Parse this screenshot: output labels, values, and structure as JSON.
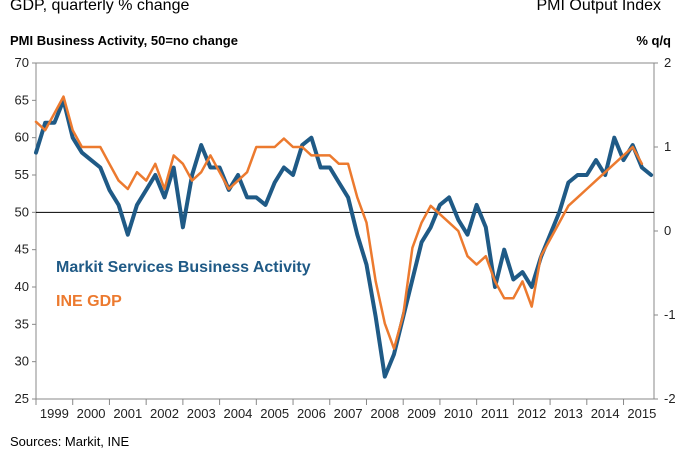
{
  "chart_data": {
    "type": "line",
    "title_left": "GDP, quarterly % change",
    "title_right": "PMI Output Index",
    "ylabel_left": "PMI Business Activity, 50=no change",
    "ylabel_right": "% q/q",
    "source": "Sources: Markit, INE",
    "ylim_left": [
      25,
      70
    ],
    "ylim_right": [
      -2,
      2
    ],
    "reference_line_left": 50,
    "yticks_left": [
      "70",
      "65",
      "60",
      "55",
      "50",
      "45",
      "40",
      "35",
      "30",
      "25"
    ],
    "yticks_right": [
      "2",
      "1",
      "0",
      "-1",
      "-2"
    ],
    "x_range": [
      1999.0,
      2015.83
    ],
    "xticks": [
      "1999",
      "2000",
      "2001",
      "2002",
      "2003",
      "2004",
      "2005",
      "2006",
      "2007",
      "2008",
      "2009",
      "2010",
      "2011",
      "2012",
      "2013",
      "2014",
      "2015"
    ],
    "series": [
      {
        "name": "Markit Services Business Activity",
        "axis": "left",
        "color": "#1f5a86",
        "x": [
          1999.0,
          1999.25,
          1999.5,
          1999.75,
          2000.0,
          2000.25,
          2000.5,
          2000.75,
          2001.0,
          2001.25,
          2001.5,
          2001.75,
          2002.0,
          2002.25,
          2002.5,
          2002.75,
          2003.0,
          2003.25,
          2003.5,
          2003.75,
          2004.0,
          2004.25,
          2004.5,
          2004.75,
          2005.0,
          2005.25,
          2005.5,
          2005.75,
          2006.0,
          2006.25,
          2006.5,
          2006.75,
          2007.0,
          2007.25,
          2007.5,
          2007.75,
          2008.0,
          2008.25,
          2008.5,
          2008.75,
          2009.0,
          2009.25,
          2009.5,
          2009.75,
          2010.0,
          2010.25,
          2010.5,
          2010.75,
          2011.0,
          2011.25,
          2011.5,
          2011.75,
          2012.0,
          2012.25,
          2012.5,
          2012.75,
          2013.0,
          2013.25,
          2013.5,
          2013.75,
          2014.0,
          2014.25,
          2014.5,
          2014.75,
          2015.0,
          2015.25,
          2015.5,
          2015.75
        ],
        "values": [
          58,
          62,
          62,
          65,
          60,
          58,
          57,
          56,
          53,
          51,
          47,
          51,
          53,
          55,
          52,
          56,
          48,
          55,
          59,
          56,
          56,
          53,
          55,
          52,
          52,
          51,
          54,
          56,
          55,
          59,
          60,
          56,
          56,
          54,
          52,
          47,
          43,
          36,
          28,
          31,
          36,
          41,
          46,
          48,
          51,
          52,
          49,
          47,
          51,
          48,
          40,
          45,
          41,
          42,
          40,
          44,
          47,
          50,
          54,
          55,
          55,
          57,
          55,
          60,
          57,
          59,
          56,
          55
        ]
      },
      {
        "name": "INE GDP",
        "axis": "right",
        "color": "#ec7a2f",
        "x": [
          1999.0,
          1999.25,
          1999.5,
          1999.75,
          2000.0,
          2000.25,
          2000.5,
          2000.75,
          2001.0,
          2001.25,
          2001.5,
          2001.75,
          2002.0,
          2002.25,
          2002.5,
          2002.75,
          2003.0,
          2003.25,
          2003.5,
          2003.75,
          2004.0,
          2004.25,
          2004.5,
          2004.75,
          2005.0,
          2005.25,
          2005.5,
          2005.75,
          2006.0,
          2006.25,
          2006.5,
          2006.75,
          2007.0,
          2007.25,
          2007.5,
          2007.75,
          2008.0,
          2008.25,
          2008.5,
          2008.75,
          2009.0,
          2009.25,
          2009.5,
          2009.75,
          2010.0,
          2010.25,
          2010.5,
          2010.75,
          2011.0,
          2011.25,
          2011.5,
          2011.75,
          2012.0,
          2012.25,
          2012.5,
          2012.75,
          2013.0,
          2013.25,
          2013.5,
          2013.75,
          2014.0,
          2014.25,
          2014.5,
          2014.75,
          2015.0,
          2015.25,
          2015.5
        ],
        "values": [
          1.3,
          1.2,
          1.4,
          1.6,
          1.2,
          1.0,
          1.0,
          1.0,
          0.8,
          0.6,
          0.5,
          0.7,
          0.6,
          0.8,
          0.5,
          0.9,
          0.8,
          0.6,
          0.7,
          0.9,
          0.7,
          0.5,
          0.6,
          0.7,
          1.0,
          1.0,
          1.0,
          1.1,
          1.0,
          1.0,
          0.9,
          0.9,
          0.9,
          0.8,
          0.8,
          0.4,
          0.1,
          -0.6,
          -1.1,
          -1.4,
          -1.0,
          -0.2,
          0.1,
          0.3,
          0.2,
          0.1,
          0.0,
          -0.3,
          -0.4,
          -0.3,
          -0.6,
          -0.8,
          -0.8,
          -0.6,
          -0.9,
          -0.3,
          -0.1,
          0.1,
          0.3,
          0.4,
          0.5,
          0.6,
          0.7,
          0.8,
          0.9,
          1.0,
          0.8
        ]
      }
    ]
  },
  "legend": {
    "services": "Markit Services Business Activity",
    "gdp": "INE GDP"
  }
}
